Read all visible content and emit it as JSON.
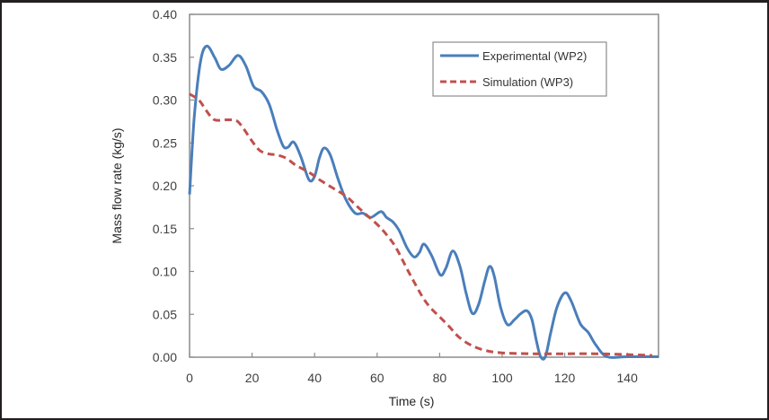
{
  "chart_data": {
    "type": "line",
    "title": "",
    "xlabel": "Time (s)",
    "ylabel": "Mass flow rate (kg/s)",
    "xlim": [
      0,
      150
    ],
    "ylim": [
      0,
      0.4
    ],
    "xticks": [
      0,
      20,
      40,
      60,
      80,
      100,
      120,
      140
    ],
    "xtick_labels": [
      "0",
      "20",
      "40",
      "60",
      "80",
      "100",
      "120",
      "140"
    ],
    "yticks": [
      0,
      0.05,
      0.1,
      0.15,
      0.2,
      0.25,
      0.3,
      0.35,
      0.4
    ],
    "ytick_labels": [
      "0.00",
      "0.05",
      "0.10",
      "0.15",
      "0.20",
      "0.25",
      "0.30",
      "0.35",
      "0.40"
    ],
    "grid": false,
    "legend_position": "top-right",
    "series": [
      {
        "name": "Experimental (WP2)",
        "color": "#4a7ebb",
        "style": "solid",
        "x": [
          0,
          1.5,
          3.5,
          5.5,
          8,
          10,
          12.5,
          15.5,
          18,
          20.5,
          23,
          25.5,
          28,
          30,
          31.5,
          33.3,
          35.5,
          38.2,
          40,
          41.5,
          43,
          45,
          47.5,
          50,
          53,
          55.5,
          58,
          61.2,
          63,
          65,
          67,
          69.5,
          71.8,
          73.5,
          75,
          77.5,
          80.2,
          82,
          84.2,
          86.5,
          88.5,
          90.5,
          92.5,
          94.5,
          96,
          97.5,
          99.5,
          101.7,
          104,
          106,
          108,
          109.5,
          111,
          112.3,
          113.8,
          115.5,
          117.5,
          120,
          122,
          125,
          127.5,
          130,
          133.6,
          140,
          150
        ],
        "y": [
          0.19,
          0.28,
          0.345,
          0.363,
          0.35,
          0.336,
          0.34,
          0.352,
          0.34,
          0.316,
          0.31,
          0.295,
          0.265,
          0.246,
          0.245,
          0.251,
          0.235,
          0.207,
          0.211,
          0.232,
          0.244,
          0.236,
          0.208,
          0.184,
          0.168,
          0.168,
          0.163,
          0.17,
          0.163,
          0.158,
          0.148,
          0.128,
          0.117,
          0.122,
          0.132,
          0.118,
          0.096,
          0.104,
          0.124,
          0.106,
          0.074,
          0.051,
          0.062,
          0.09,
          0.106,
          0.094,
          0.058,
          0.038,
          0.044,
          0.051,
          0.054,
          0.044,
          0.018,
          0.0,
          0.0,
          0.028,
          0.058,
          0.075,
          0.066,
          0.039,
          0.029,
          0.014,
          0.0,
          0.0,
          0.0
        ]
      },
      {
        "name": "Simulation (WP3)",
        "color": "#c0504d",
        "style": "dashed",
        "x": [
          0,
          3,
          5.5,
          8,
          12,
          15,
          17,
          20,
          22.5,
          25.6,
          28,
          31,
          34,
          38.5,
          42,
          46,
          50,
          53,
          56,
          60,
          63,
          66,
          70,
          74.4,
          77,
          80,
          83,
          86,
          90,
          94.5,
          100,
          110,
          120,
          130,
          140,
          148
        ],
        "y": [
          0.307,
          0.3,
          0.287,
          0.277,
          0.277,
          0.276,
          0.268,
          0.252,
          0.241,
          0.237,
          0.236,
          0.232,
          0.224,
          0.215,
          0.206,
          0.197,
          0.188,
          0.178,
          0.168,
          0.155,
          0.143,
          0.128,
          0.1,
          0.071,
          0.058,
          0.047,
          0.036,
          0.024,
          0.014,
          0.008,
          0.005,
          0.004,
          0.004,
          0.004,
          0.003,
          0.002
        ]
      }
    ]
  }
}
